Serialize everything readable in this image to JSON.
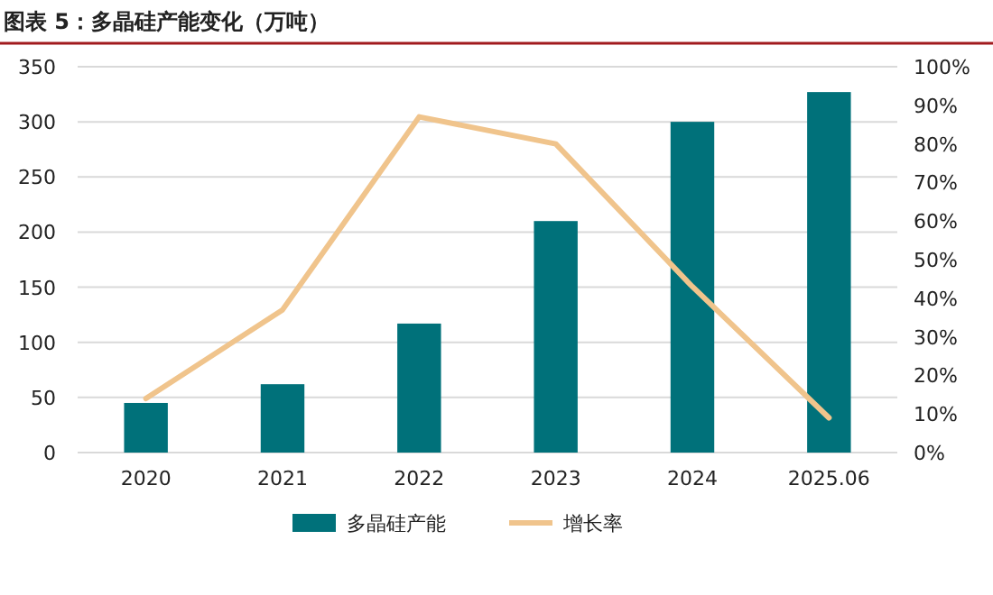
{
  "chart_data": {
    "type": "bar",
    "title": "图表 5：多晶硅产能变化（万吨）",
    "categories": [
      "2020",
      "2021",
      "2022",
      "2023",
      "2024",
      "2025.06"
    ],
    "series": [
      {
        "name": "多晶硅产能",
        "color": "#00717a",
        "values": [
          45,
          62,
          117,
          210,
          300,
          327
        ]
      },
      {
        "name": "增长率",
        "type": "line",
        "axis": "y2",
        "color": "#f0c48c",
        "values": [
          14,
          37,
          87,
          80,
          43,
          9
        ]
      }
    ],
    "ylim": [
      0,
      350
    ],
    "yticks": [
      0,
      50,
      100,
      150,
      200,
      250,
      300,
      350
    ],
    "y2lim": [
      0,
      100
    ],
    "y2ticks": [
      {
        "value": 0,
        "label": "0%"
      },
      {
        "value": 10,
        "label": "10%"
      },
      {
        "value": 20,
        "label": "20%"
      },
      {
        "value": 30,
        "label": "30%"
      },
      {
        "value": 40,
        "label": "40%"
      },
      {
        "value": 50,
        "label": "50%"
      },
      {
        "value": 60,
        "label": "60%"
      },
      {
        "value": 70,
        "label": "70%"
      },
      {
        "value": 80,
        "label": "80%"
      },
      {
        "value": 90,
        "label": "90%"
      },
      {
        "value": 100,
        "label": "100%"
      }
    ],
    "grid": "y",
    "legend": "bottom",
    "marker": "none",
    "line_style": "solid"
  }
}
